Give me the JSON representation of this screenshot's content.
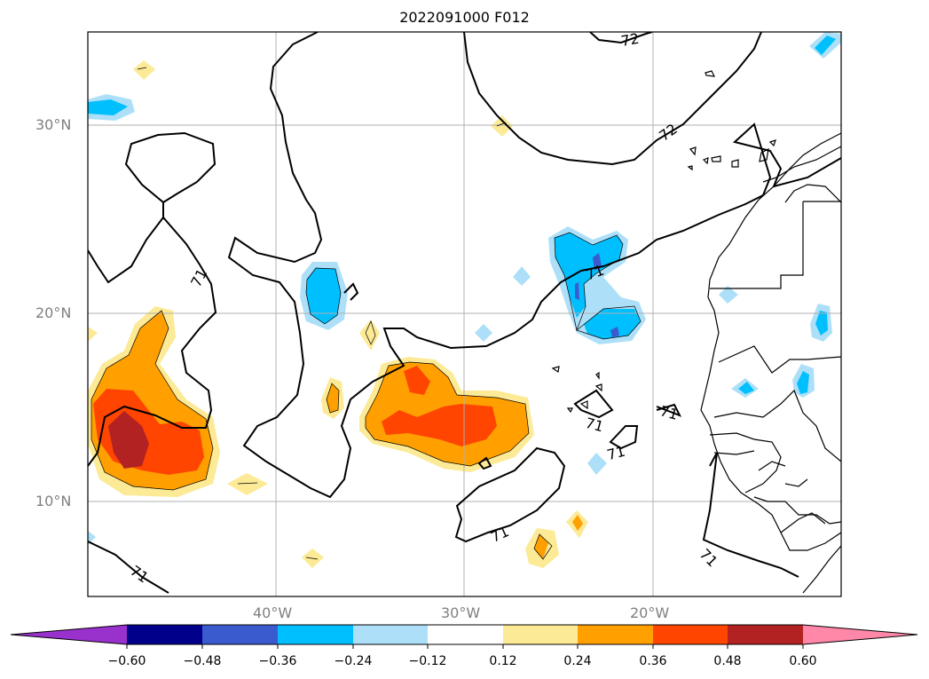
{
  "title": "2022091000 F012",
  "lat_labels": [
    "30°N",
    "20°N",
    "10°N"
  ],
  "lon_labels": [
    "40°W",
    "30°W",
    "20°W"
  ],
  "contour_labels": [
    "71",
    "71",
    "71",
    "71",
    "71",
    "71",
    "71",
    "71",
    "72",
    "72"
  ],
  "colorbar": {
    "ticks": [
      "−0.60",
      "−0.48",
      "−0.36",
      "−0.24",
      "−0.12",
      "0.12",
      "0.24",
      "0.36",
      "0.48",
      "0.60"
    ],
    "colors": [
      "#9932CC",
      "#00008B",
      "#3A5BCD",
      "#00BFFF",
      "#ADE0F8",
      "#FFFFFF",
      "#FCEA96",
      "#FFA000",
      "#FF4500",
      "#B22222",
      "#FF88A8"
    ]
  },
  "colors": {
    "grid": "#b0b0b0",
    "axis_text": "#7f7f7f",
    "contour": "#000000"
  }
}
